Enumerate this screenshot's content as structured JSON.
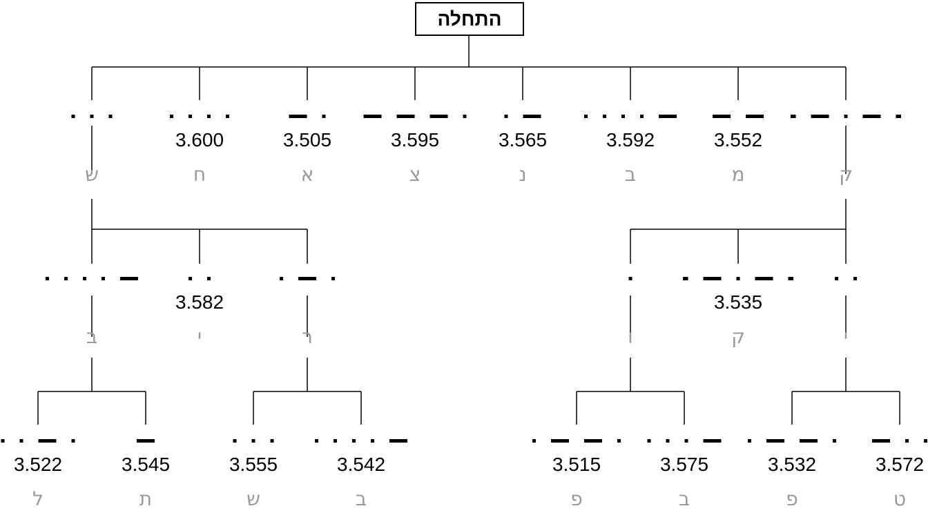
{
  "root": {
    "label": "התחלה"
  },
  "colors": {
    "line": "#000000",
    "letter": "#9a9a9a"
  },
  "level1": [
    {
      "morse": "...",
      "value": "",
      "letter": "ש"
    },
    {
      "morse": "....",
      "value": "3.600",
      "letter": "ח"
    },
    {
      "morse": "-.",
      "value": "3.505",
      "letter": "א"
    },
    {
      "morse": "---.",
      "value": "3.595",
      "letter": "צ"
    },
    {
      "morse": ".-",
      "value": "3.565",
      "letter": "נ"
    },
    {
      "morse": "....-",
      "value": "3.592",
      "letter": "ב"
    },
    {
      "morse": "--",
      "value": "3.552",
      "letter": "מ"
    },
    {
      "morse": "--.--",
      "value": "",
      "letter": "ק"
    }
  ],
  "level2": [
    {
      "morse": "....-",
      "value": "",
      "letter": "ב"
    },
    {
      "morse": "..",
      "value": "3.582",
      "letter": "י"
    },
    {
      "morse": ".-.",
      "value": "",
      "letter": "ר"
    },
    {
      "morse": ".",
      "value": "",
      "letter": "ו"
    },
    {
      "morse": "--.--",
      "value": "3.535",
      "letter": "ק"
    },
    {
      "morse": "..",
      "value": "",
      "letter": "י"
    }
  ],
  "level3": [
    {
      "morse": "..-.",
      "value": "3.522",
      "letter": "ל"
    },
    {
      "morse": "-",
      "value": "3.545",
      "letter": "ת"
    },
    {
      "morse": "...",
      "value": "3.555",
      "letter": "ש"
    },
    {
      "morse": "....-",
      "value": "3.542",
      "letter": "ב"
    },
    {
      "morse": ".--.",
      "value": "3.515",
      "letter": "פ"
    },
    {
      "morse": "...-",
      "value": "3.575",
      "letter": "ב"
    },
    {
      "morse": ".--.",
      "value": "3.532",
      "letter": "פ"
    },
    {
      "morse": "-..",
      "value": "3.572",
      "letter": "ט"
    }
  ]
}
